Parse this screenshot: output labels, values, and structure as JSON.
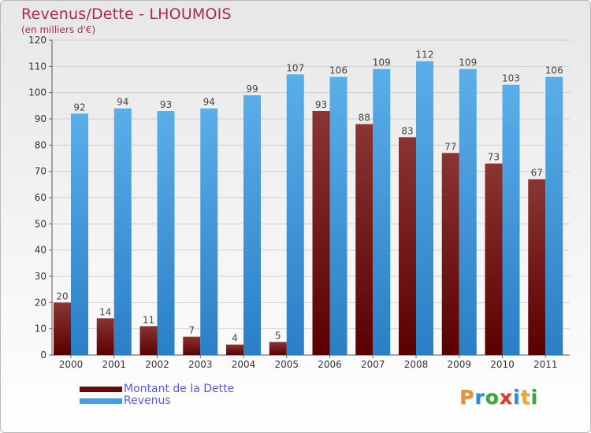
{
  "title": "Revenus/Dette - LHOUMOIS",
  "subtitle": "(en milliers d'€)",
  "colors": {
    "title": "#b0265a",
    "dette_top": "#8a3434",
    "dette_bottom": "#5a0000",
    "revenus_top": "#5aaee8",
    "revenus_bottom": "#2a7fc6",
    "legend_text": "#5a5ae0"
  },
  "legend": [
    {
      "label": "Montant de la Dette",
      "color": "#6a0a0a"
    },
    {
      "label": "Revenus",
      "color": "#4a9de0"
    }
  ],
  "logo": {
    "letters": [
      "P",
      "r",
      "o",
      "x",
      "i",
      "t",
      "i"
    ],
    "colors": [
      "#e8942a",
      "#2a8fd8",
      "#3aa83a",
      "#d83a2a",
      "#2a8fd8",
      "#e8a82a",
      "#3aa83a"
    ]
  },
  "chart_data": {
    "type": "bar",
    "categories": [
      "2000",
      "2001",
      "2002",
      "2003",
      "2004",
      "2005",
      "2006",
      "2007",
      "2008",
      "2009",
      "2010",
      "2011"
    ],
    "series": [
      {
        "name": "Montant de la Dette",
        "values": [
          20,
          14,
          11,
          7,
          4,
          5,
          93,
          88,
          83,
          77,
          73,
          67
        ]
      },
      {
        "name": "Revenus",
        "values": [
          92,
          94,
          93,
          94,
          99,
          107,
          106,
          109,
          112,
          109,
          103,
          106
        ]
      }
    ],
    "ylim": [
      0,
      120
    ],
    "yticks": [
      0,
      10,
      20,
      30,
      40,
      50,
      60,
      70,
      80,
      90,
      100,
      110,
      120
    ],
    "grid": true,
    "title": "Revenus/Dette - LHOUMOIS",
    "ylabel": "(en milliers d'€)",
    "xlabel": "",
    "legend_position": "bottom-left"
  }
}
